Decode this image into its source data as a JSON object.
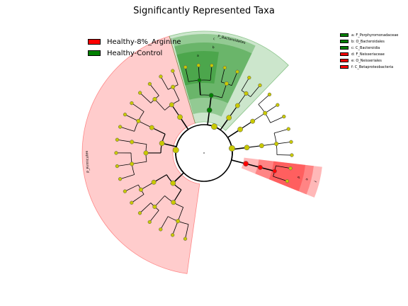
{
  "chart_data": {
    "type": "cladogram",
    "title": "Significantly Represented Taxa",
    "groups": [
      {
        "name": "Healthy-8%_Arginine",
        "color": "#ff0000"
      },
      {
        "name": "Healthy-Control",
        "color": "#008000"
      }
    ],
    "clade_legend": [
      {
        "label": "a: F_Porphyromonadaceae",
        "color": "#008000"
      },
      {
        "label": "b: O_Bacteroidales",
        "color": "#008000"
      },
      {
        "label": "c: C_Bacteroidia",
        "color": "#008000"
      },
      {
        "label": "d: F_Neisseriaceae",
        "color": "#ff0000"
      },
      {
        "label": "e: O_Neisseriales",
        "color": "#ff0000"
      },
      {
        "label": "f: C_Betaproteobacteria",
        "color": "#ff0000"
      }
    ],
    "highlighted_phyla": [
      {
        "label": "P_Firmicutes",
        "group": "Healthy-8%_Arginine"
      },
      {
        "label": "P_Bacteroidetes",
        "group": "Healthy-Control"
      }
    ],
    "clade_letters": [
      "a",
      "b",
      "c",
      "d",
      "e",
      "f"
    ]
  }
}
